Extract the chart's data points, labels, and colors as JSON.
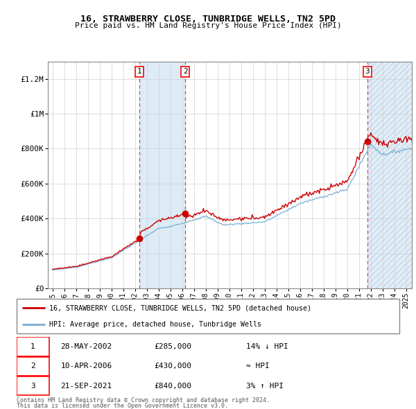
{
  "title": "16, STRAWBERRY CLOSE, TUNBRIDGE WELLS, TN2 5PD",
  "subtitle": "Price paid vs. HM Land Registry's House Price Index (HPI)",
  "sale_label": "16, STRAWBERRY CLOSE, TUNBRIDGE WELLS, TN2 5PD (detached house)",
  "hpi_label": "HPI: Average price, detached house, Tunbridge Wells",
  "sale_color": "#cc0000",
  "hpi_color": "#7aadd4",
  "table": [
    {
      "num": 1,
      "date": "28-MAY-2002",
      "price": "£285,000",
      "change": "14% ↓ HPI"
    },
    {
      "num": 2,
      "date": "10-APR-2006",
      "price": "£430,000",
      "change": "≈ HPI"
    },
    {
      "num": 3,
      "date": "21-SEP-2021",
      "price": "£840,000",
      "change": "3% ↑ HPI"
    }
  ],
  "footnote1": "Contains HM Land Registry data © Crown copyright and database right 2024.",
  "footnote2": "This data is licensed under the Open Government Licence v3.0.",
  "ylim": [
    0,
    1300000
  ],
  "yticks": [
    0,
    200000,
    400000,
    600000,
    800000,
    1000000,
    1200000
  ],
  "ytick_labels": [
    "£0",
    "£200K",
    "£400K",
    "£600K",
    "£800K",
    "£1M",
    "£1.2M"
  ],
  "sale1_x": 2002.38,
  "sale1_y": 285000,
  "sale2_x": 2006.27,
  "sale2_y": 430000,
  "sale3_x": 2021.72,
  "sale3_y": 840000,
  "xmin": 1994.6,
  "xmax": 2025.5
}
